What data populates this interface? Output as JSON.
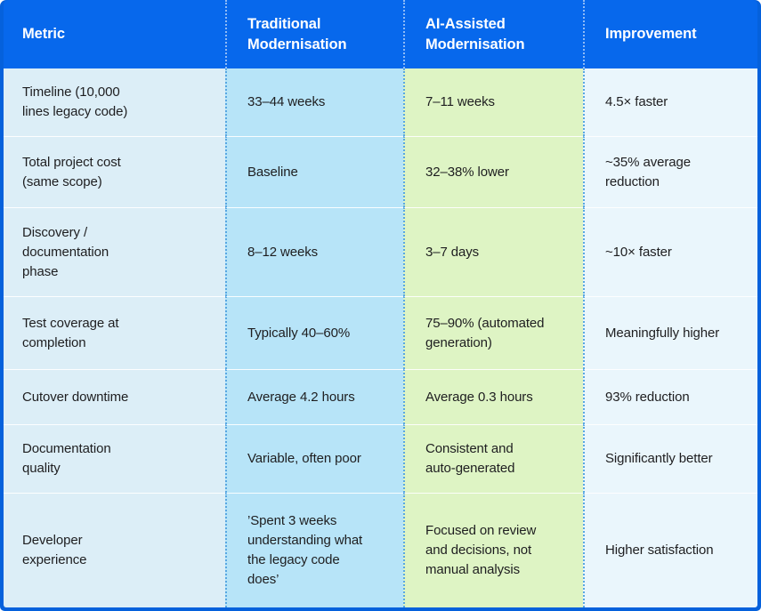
{
  "chart_data": {
    "type": "table",
    "title": "Traditional vs AI-Assisted Modernisation comparison",
    "columns": [
      "Metric",
      "Traditional Modernisation",
      "AI-Assisted Modernisation",
      "Improvement"
    ],
    "rows": [
      [
        "Timeline (10,000 lines legacy code)",
        "33–44 weeks",
        "7–11 weeks",
        "4.5× faster"
      ],
      [
        "Total project cost (same scope)",
        "Baseline",
        "32–38% lower",
        "~35% average reduction"
      ],
      [
        "Discovery / documentation phase",
        "8–12 weeks",
        "3–7 days",
        "~10× faster"
      ],
      [
        "Test coverage at completion",
        "Typically 40–60%",
        "75–90% (automated generation)",
        "Meaningfully higher"
      ],
      [
        "Cutover downtime",
        "Average 4.2 hours",
        "Average 0.3 hours",
        "93% reduction"
      ],
      [
        "Documentation quality",
        "Variable, often poor",
        "Consistent and auto-generated",
        "Significantly better"
      ],
      [
        "Developer experience",
        "’Spent 3 weeks understanding what the legacy code does’",
        "Focused on review and decisions, not manual analysis",
        "Higher satisfaction"
      ]
    ]
  },
  "display": {
    "headers": [
      "Metric",
      "Traditional\nModernisation",
      "AI-Assisted\nModernisation",
      "Improvement"
    ],
    "rows": [
      [
        "Timeline (10,000\nlines legacy code)",
        "33–44 weeks",
        "7–11 weeks",
        "4.5× faster"
      ],
      [
        "Total project cost\n(same scope)",
        "Baseline",
        "32–38% lower",
        "~35% average\nreduction"
      ],
      [
        "Discovery /\ndocumentation\nphase",
        "8–12 weeks",
        "3–7 days",
        "~10× faster"
      ],
      [
        "Test coverage at\ncompletion",
        "Typically 40–60%",
        "75–90% (automated\ngeneration)",
        "Meaningfully higher"
      ],
      [
        "Cutover downtime",
        "Average 4.2 hours",
        "Average 0.3 hours",
        "93% reduction"
      ],
      [
        "Documentation\nquality",
        "Variable, often poor",
        "Consistent and\nauto-generated",
        "Significantly better"
      ],
      [
        "Developer\nexperience",
        "’Spent 3 weeks\nunderstanding what\nthe legacy code\ndoes’",
        "Focused on review\nand decisions, not\nmanual analysis",
        "Higher satisfaction"
      ]
    ]
  },
  "colors": {
    "header_bg": "#0768EC",
    "header_text": "#FFFFFF",
    "frame_border": "#0561DC",
    "metric_col_bg": "#DCEEF7",
    "traditional_col_bg": "#B7E4F8",
    "ai_assisted_col_bg": "#DEF4C4",
    "improvement_col_bg": "#EAF6FC",
    "dotted_divider": "#58A7E2",
    "body_text": "#1E1E20"
  }
}
